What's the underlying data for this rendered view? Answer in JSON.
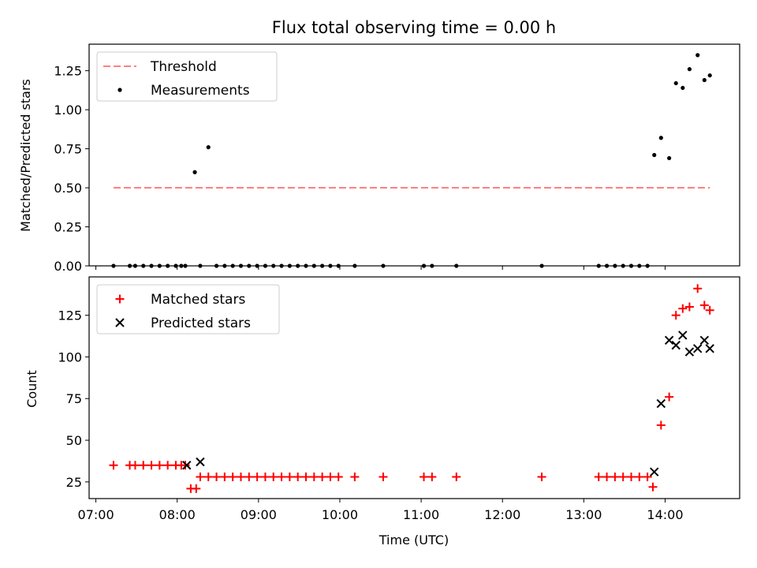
{
  "chart_data": [
    {
      "type": "scatter",
      "title": "Flux total observing time = 0.00 h",
      "xlabel": "",
      "ylabel": "Matched/Predicted stars",
      "x_is_time_utc": true,
      "xlim": [
        "06:55",
        "14:55"
      ],
      "ylim": [
        0,
        1.42
      ],
      "y_ticks": [
        0.0,
        0.25,
        0.5,
        0.75,
        1.0,
        1.25
      ],
      "y_tick_labels": [
        "0.00",
        "0.25",
        "0.50",
        "0.75",
        "1.00",
        "1.25"
      ],
      "legend": [
        "Threshold",
        "Measurements"
      ],
      "legend_position": "upper left",
      "series": [
        {
          "name": "Threshold",
          "kind": "dashed-line",
          "color": "#ff7f7f",
          "points": [
            [
              "07:13",
              0.5
            ],
            [
              "14:33",
              0.5
            ]
          ]
        },
        {
          "name": "Measurements",
          "kind": "dot",
          "color": "#000000",
          "points": [
            [
              "07:13",
              0
            ],
            [
              "07:25",
              0
            ],
            [
              "07:29",
              0
            ],
            [
              "07:35",
              0
            ],
            [
              "07:41",
              0
            ],
            [
              "07:47",
              0
            ],
            [
              "07:53",
              0
            ],
            [
              "07:59",
              0
            ],
            [
              "08:03",
              0
            ],
            [
              "08:06",
              0
            ],
            [
              "08:13",
              0.6
            ],
            [
              "08:17",
              0
            ],
            [
              "08:23",
              0.76
            ],
            [
              "08:29",
              0
            ],
            [
              "08:35",
              0
            ],
            [
              "08:41",
              0
            ],
            [
              "08:47",
              0
            ],
            [
              "08:53",
              0
            ],
            [
              "08:59",
              0
            ],
            [
              "09:05",
              0
            ],
            [
              "09:11",
              0
            ],
            [
              "09:17",
              0
            ],
            [
              "09:23",
              0
            ],
            [
              "09:29",
              0
            ],
            [
              "09:35",
              0
            ],
            [
              "09:41",
              0
            ],
            [
              "09:47",
              0
            ],
            [
              "09:53",
              0
            ],
            [
              "09:59",
              0
            ],
            [
              "10:11",
              0
            ],
            [
              "10:32",
              0
            ],
            [
              "11:02",
              0
            ],
            [
              "11:08",
              0
            ],
            [
              "11:26",
              0
            ],
            [
              "12:29",
              0
            ],
            [
              "13:11",
              0
            ],
            [
              "13:17",
              0
            ],
            [
              "13:23",
              0
            ],
            [
              "13:29",
              0
            ],
            [
              "13:35",
              0
            ],
            [
              "13:41",
              0
            ],
            [
              "13:47",
              0
            ],
            [
              "13:52",
              0.71
            ],
            [
              "13:57",
              0.82
            ],
            [
              "14:03",
              0.69
            ],
            [
              "14:08",
              1.17
            ],
            [
              "14:13",
              1.14
            ],
            [
              "14:18",
              1.26
            ],
            [
              "14:24",
              1.35
            ],
            [
              "14:29",
              1.19
            ],
            [
              "14:33",
              1.22
            ]
          ]
        }
      ]
    },
    {
      "type": "scatter",
      "title": "",
      "xlabel": "Time (UTC)",
      "ylabel": "Count",
      "x_is_time_utc": true,
      "xlim": [
        "06:55",
        "14:55"
      ],
      "ylim": [
        15,
        148
      ],
      "y_ticks": [
        25,
        50,
        75,
        100,
        125
      ],
      "y_tick_labels": [
        "25",
        "50",
        "75",
        "100",
        "125"
      ],
      "x_ticks": [
        "07:00",
        "08:00",
        "09:00",
        "10:00",
        "11:00",
        "12:00",
        "13:00",
        "14:00"
      ],
      "x_tick_labels": [
        "07:00",
        "08:00",
        "09:00",
        "10:00",
        "11:00",
        "12:00",
        "13:00",
        "14:00"
      ],
      "legend": [
        "Matched stars",
        "Predicted stars"
      ],
      "legend_position": "upper left",
      "series": [
        {
          "name": "Matched stars",
          "kind": "plus",
          "color": "#ff0000",
          "points": [
            [
              "07:13",
              35
            ],
            [
              "07:25",
              35
            ],
            [
              "07:29",
              35
            ],
            [
              "07:35",
              35
            ],
            [
              "07:41",
              35
            ],
            [
              "07:47",
              35
            ],
            [
              "07:53",
              35
            ],
            [
              "07:59",
              35
            ],
            [
              "08:03",
              35
            ],
            [
              "08:06",
              35
            ],
            [
              "08:10",
              21
            ],
            [
              "08:14",
              21
            ],
            [
              "08:17",
              28
            ],
            [
              "08:23",
              28
            ],
            [
              "08:29",
              28
            ],
            [
              "08:35",
              28
            ],
            [
              "08:41",
              28
            ],
            [
              "08:47",
              28
            ],
            [
              "08:53",
              28
            ],
            [
              "08:59",
              28
            ],
            [
              "09:05",
              28
            ],
            [
              "09:11",
              28
            ],
            [
              "09:17",
              28
            ],
            [
              "09:23",
              28
            ],
            [
              "09:29",
              28
            ],
            [
              "09:35",
              28
            ],
            [
              "09:41",
              28
            ],
            [
              "09:47",
              28
            ],
            [
              "09:53",
              28
            ],
            [
              "09:59",
              28
            ],
            [
              "10:11",
              28
            ],
            [
              "10:32",
              28
            ],
            [
              "11:02",
              28
            ],
            [
              "11:08",
              28
            ],
            [
              "11:26",
              28
            ],
            [
              "12:29",
              28
            ],
            [
              "13:11",
              28
            ],
            [
              "13:17",
              28
            ],
            [
              "13:23",
              28
            ],
            [
              "13:29",
              28
            ],
            [
              "13:35",
              28
            ],
            [
              "13:41",
              28
            ],
            [
              "13:47",
              28
            ],
            [
              "13:51",
              22
            ],
            [
              "13:57",
              59
            ],
            [
              "14:03",
              76
            ],
            [
              "14:08",
              125
            ],
            [
              "14:13",
              129
            ],
            [
              "14:18",
              130
            ],
            [
              "14:24",
              141
            ],
            [
              "14:29",
              131
            ],
            [
              "14:33",
              128
            ]
          ]
        },
        {
          "name": "Predicted stars",
          "kind": "x",
          "color": "#000000",
          "points": [
            [
              "08:07",
              35
            ],
            [
              "08:17",
              37
            ],
            [
              "13:52",
              31
            ],
            [
              "13:57",
              72
            ],
            [
              "14:03",
              110
            ],
            [
              "14:08",
              107
            ],
            [
              "14:13",
              113
            ],
            [
              "14:18",
              103
            ],
            [
              "14:24",
              105
            ],
            [
              "14:29",
              110
            ],
            [
              "14:33",
              105
            ]
          ]
        }
      ]
    }
  ]
}
